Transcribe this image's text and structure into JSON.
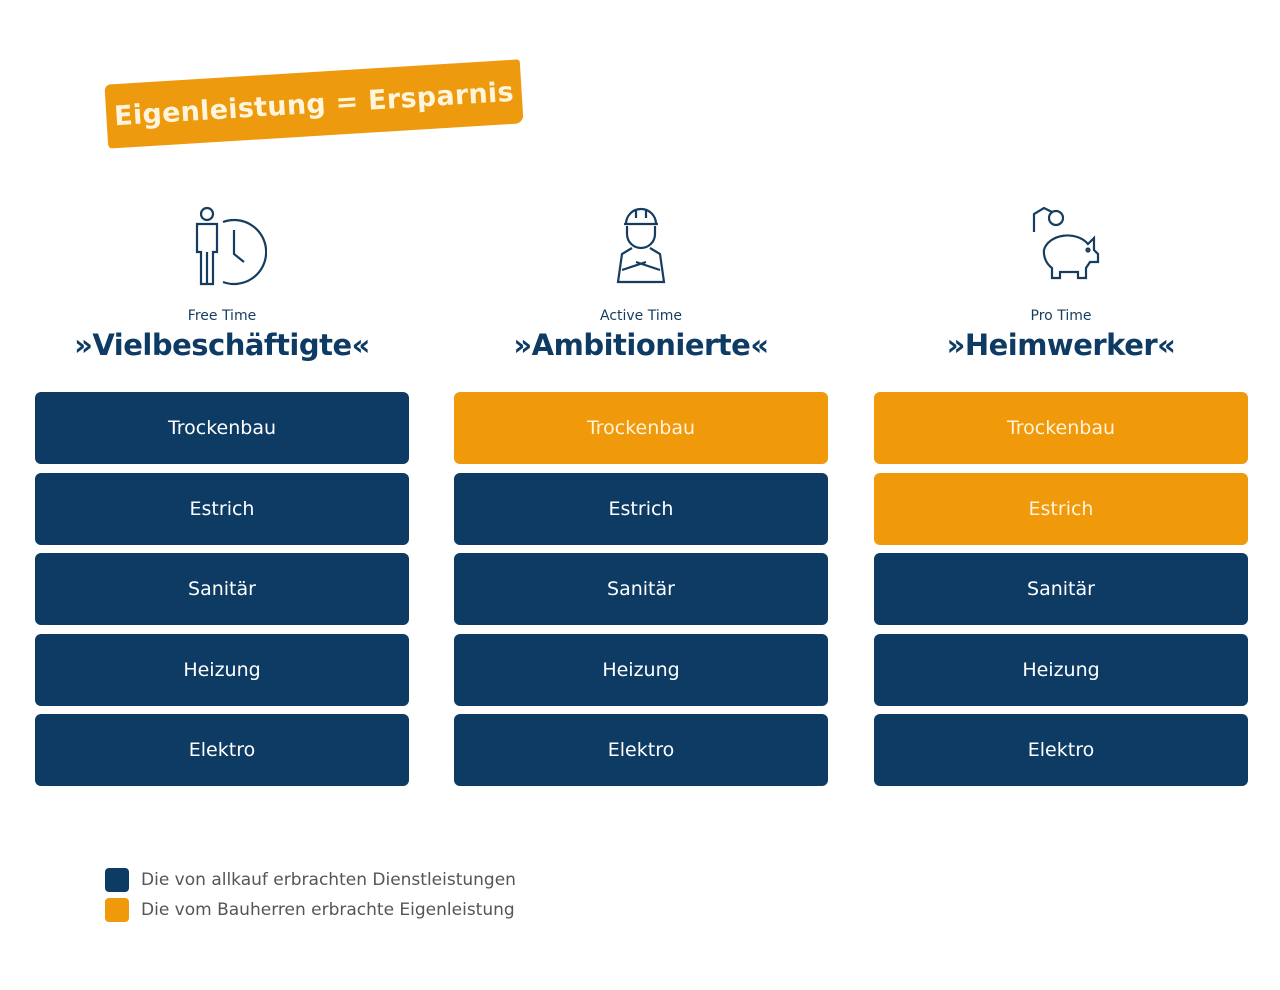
{
  "banner": {
    "text": "Eigenleistung = Ersparnis"
  },
  "colors": {
    "navy": "#0d3b63",
    "orange": "#f0990a"
  },
  "columns": [
    {
      "icon": "person-clock-icon",
      "subtitle": "Free Time",
      "title": "»Vielbeschäftigte«",
      "items": [
        {
          "label": "Trockenbau",
          "type": "navy"
        },
        {
          "label": "Estrich",
          "type": "navy"
        },
        {
          "label": "Sanitär",
          "type": "navy"
        },
        {
          "label": "Heizung",
          "type": "navy"
        },
        {
          "label": "Elektro",
          "type": "navy"
        }
      ]
    },
    {
      "icon": "construction-worker-icon",
      "subtitle": "Active Time",
      "title": "»Ambitionierte«",
      "items": [
        {
          "label": "Trockenbau",
          "type": "orange"
        },
        {
          "label": "Estrich",
          "type": "navy"
        },
        {
          "label": "Sanitär",
          "type": "navy"
        },
        {
          "label": "Heizung",
          "type": "navy"
        },
        {
          "label": "Elektro",
          "type": "navy"
        }
      ]
    },
    {
      "icon": "piggy-bank-icon",
      "subtitle": "Pro Time",
      "title": "»Heimwerker«",
      "items": [
        {
          "label": "Trockenbau",
          "type": "orange"
        },
        {
          "label": "Estrich",
          "type": "orange"
        },
        {
          "label": "Sanitär",
          "type": "navy"
        },
        {
          "label": "Heizung",
          "type": "navy"
        },
        {
          "label": "Elektro",
          "type": "navy"
        }
      ]
    }
  ],
  "legend": [
    {
      "label": "Die von allkauf erbrachten Dienstleistungen",
      "type": "navy"
    },
    {
      "label": "Die vom Bauherren erbrachte Eigenleistung",
      "type": "orange"
    }
  ]
}
